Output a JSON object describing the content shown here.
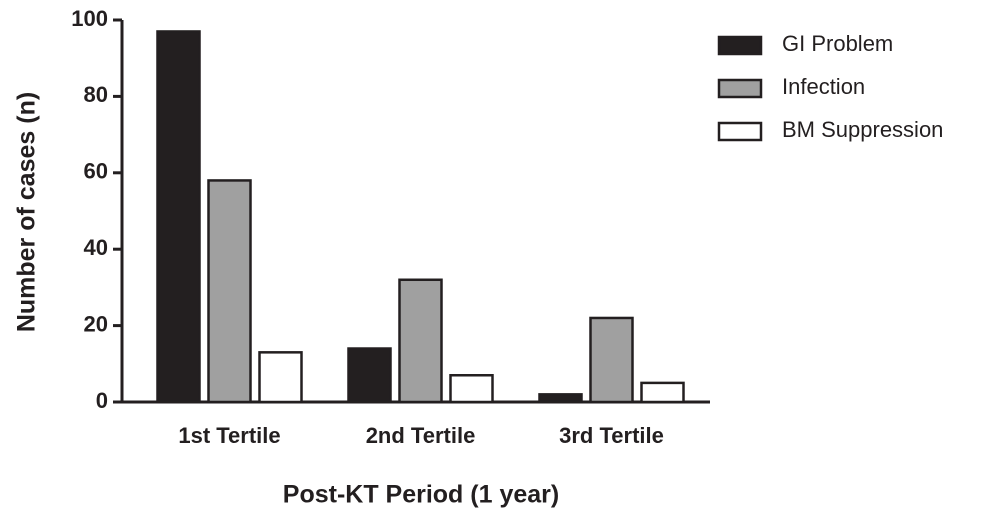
{
  "chart_data": {
    "type": "bar",
    "xlabel": "Post-KT Period  (1 year)",
    "ylabel": "Number of cases (n)",
    "categories": [
      "1st Tertile",
      "2nd Tertile",
      "3rd Tertile"
    ],
    "series": [
      {
        "name": "GI Problem",
        "color": "#231f20",
        "values": [
          97,
          14,
          2
        ]
      },
      {
        "name": "Infection",
        "color": "#a0a0a0",
        "values": [
          58,
          32,
          22
        ]
      },
      {
        "name": "BM Suppression",
        "color": "#ffffff",
        "values": [
          13,
          7,
          5
        ]
      }
    ],
    "ylim": [
      0,
      100
    ],
    "yticks": [
      0,
      20,
      40,
      60,
      80,
      100
    ],
    "legend": "upper right",
    "grid": false
  }
}
